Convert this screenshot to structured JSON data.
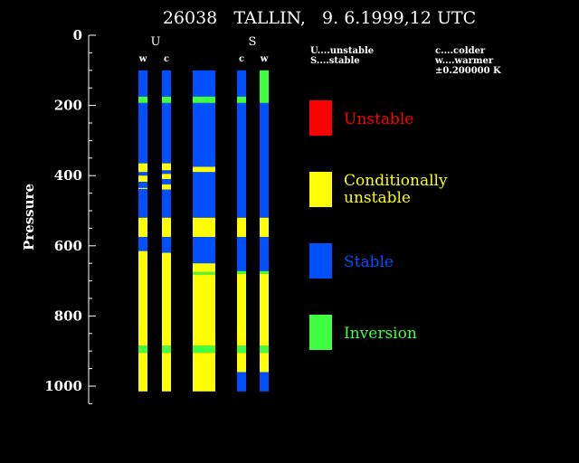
{
  "title": "26038   TALLIN,   9. 6.1999,12 UTC",
  "chart_data": {
    "type": "bar",
    "ylabel": "Pressure",
    "ylim": [
      0,
      1050
    ],
    "yticks": [
      0,
      200,
      400,
      600,
      800,
      1000
    ],
    "group_labels": [
      "U",
      "S"
    ],
    "colors": {
      "unstable": "#ff0000",
      "conditional": "#ffff00",
      "stable": "#0050ff",
      "inversion": "#40ff40"
    },
    "columns": [
      {
        "label": "w",
        "segments": [
          {
            "from": 100,
            "to": 175,
            "class": "stable"
          },
          {
            "from": 175,
            "to": 193,
            "class": "inversion"
          },
          {
            "from": 193,
            "to": 365,
            "class": "stable"
          },
          {
            "from": 365,
            "to": 390,
            "class": "conditional"
          },
          {
            "from": 390,
            "to": 400,
            "class": "stable"
          },
          {
            "from": 400,
            "to": 418,
            "class": "conditional"
          },
          {
            "from": 418,
            "to": 435,
            "class": "stable"
          },
          {
            "from": 435,
            "to": 438,
            "class": "conditional"
          },
          {
            "from": 438,
            "to": 520,
            "class": "stable"
          },
          {
            "from": 520,
            "to": 575,
            "class": "conditional"
          },
          {
            "from": 575,
            "to": 615,
            "class": "stable"
          },
          {
            "from": 615,
            "to": 885,
            "class": "conditional"
          },
          {
            "from": 885,
            "to": 905,
            "class": "inversion"
          },
          {
            "from": 905,
            "to": 1015,
            "class": "conditional"
          }
        ]
      },
      {
        "label": "c",
        "segments": [
          {
            "from": 100,
            "to": 175,
            "class": "stable"
          },
          {
            "from": 175,
            "to": 193,
            "class": "inversion"
          },
          {
            "from": 193,
            "to": 365,
            "class": "stable"
          },
          {
            "from": 365,
            "to": 385,
            "class": "conditional"
          },
          {
            "from": 385,
            "to": 395,
            "class": "stable"
          },
          {
            "from": 395,
            "to": 410,
            "class": "conditional"
          },
          {
            "from": 410,
            "to": 425,
            "class": "stable"
          },
          {
            "from": 425,
            "to": 440,
            "class": "conditional"
          },
          {
            "from": 440,
            "to": 520,
            "class": "stable"
          },
          {
            "from": 520,
            "to": 575,
            "class": "conditional"
          },
          {
            "from": 575,
            "to": 620,
            "class": "stable"
          },
          {
            "from": 620,
            "to": 885,
            "class": "conditional"
          },
          {
            "from": 885,
            "to": 905,
            "class": "inversion"
          },
          {
            "from": 905,
            "to": 1015,
            "class": "conditional"
          }
        ]
      },
      {
        "label": "",
        "segments": [
          {
            "from": 100,
            "to": 175,
            "class": "stable"
          },
          {
            "from": 175,
            "to": 193,
            "class": "inversion"
          },
          {
            "from": 193,
            "to": 375,
            "class": "stable"
          },
          {
            "from": 375,
            "to": 390,
            "class": "conditional"
          },
          {
            "from": 390,
            "to": 520,
            "class": "stable"
          },
          {
            "from": 520,
            "to": 575,
            "class": "conditional"
          },
          {
            "from": 575,
            "to": 650,
            "class": "stable"
          },
          {
            "from": 650,
            "to": 675,
            "class": "conditional"
          },
          {
            "from": 675,
            "to": 682,
            "class": "inversion"
          },
          {
            "from": 682,
            "to": 885,
            "class": "conditional"
          },
          {
            "from": 885,
            "to": 905,
            "class": "inversion"
          },
          {
            "from": 905,
            "to": 1015,
            "class": "conditional"
          }
        ]
      },
      {
        "label": "c",
        "segments": [
          {
            "from": 100,
            "to": 175,
            "class": "stable"
          },
          {
            "from": 175,
            "to": 193,
            "class": "inversion"
          },
          {
            "from": 193,
            "to": 520,
            "class": "stable"
          },
          {
            "from": 520,
            "to": 575,
            "class": "conditional"
          },
          {
            "from": 575,
            "to": 672,
            "class": "stable"
          },
          {
            "from": 672,
            "to": 680,
            "class": "inversion"
          },
          {
            "from": 680,
            "to": 885,
            "class": "conditional"
          },
          {
            "from": 885,
            "to": 905,
            "class": "inversion"
          },
          {
            "from": 905,
            "to": 960,
            "class": "conditional"
          },
          {
            "from": 960,
            "to": 1015,
            "class": "stable"
          }
        ]
      },
      {
        "label": "w",
        "segments": [
          {
            "from": 100,
            "to": 193,
            "class": "inversion"
          },
          {
            "from": 193,
            "to": 520,
            "class": "stable"
          },
          {
            "from": 520,
            "to": 575,
            "class": "conditional"
          },
          {
            "from": 575,
            "to": 672,
            "class": "stable"
          },
          {
            "from": 672,
            "to": 680,
            "class": "inversion"
          },
          {
            "from": 680,
            "to": 885,
            "class": "conditional"
          },
          {
            "from": 885,
            "to": 905,
            "class": "inversion"
          },
          {
            "from": 905,
            "to": 960,
            "class": "conditional"
          },
          {
            "from": 960,
            "to": 1015,
            "class": "stable"
          }
        ]
      }
    ],
    "notes_left": [
      "U....unstable",
      "S....stable"
    ],
    "notes_right": [
      "c....colder",
      "w....warmer",
      "±0.200000 K"
    ],
    "legend": [
      {
        "lines": [
          "Unstable"
        ],
        "class": "unstable"
      },
      {
        "lines": [
          "Conditionally",
          "unstable"
        ],
        "class": "conditional"
      },
      {
        "lines": [
          "Stable"
        ],
        "class": "stable"
      },
      {
        "lines": [
          "Inversion"
        ],
        "class": "inversion"
      }
    ]
  }
}
